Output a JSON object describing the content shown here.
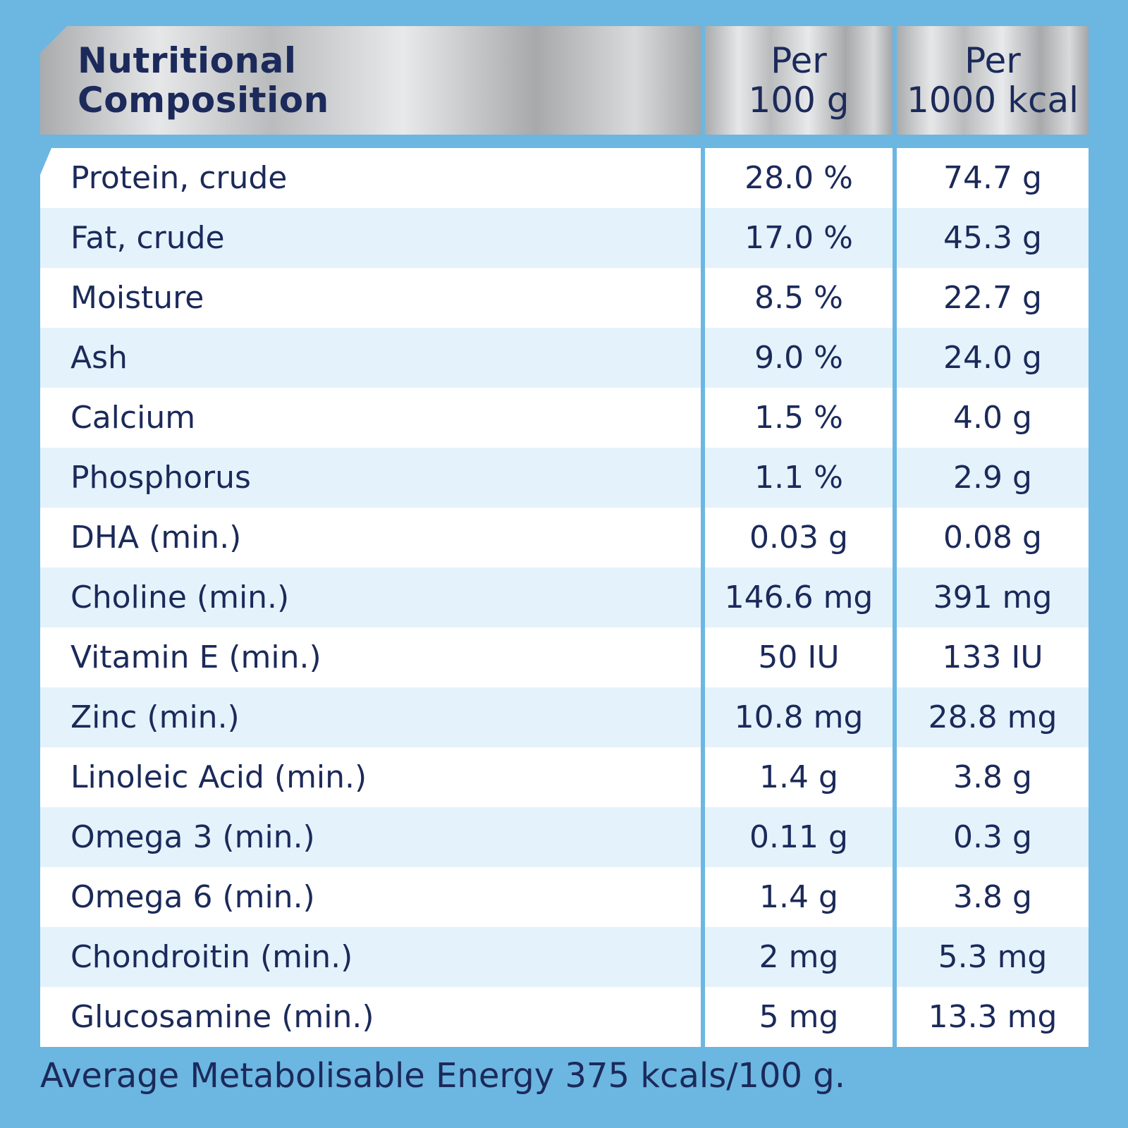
{
  "header": {
    "label_col": "Nutritional\nComposition",
    "col1": "Per\n100 g",
    "col2": "Per\n1000 kcal"
  },
  "rows": [
    {
      "name": "Protein, crude",
      "per100g": "28.0 %",
      "per1000kcal": "74.7 g"
    },
    {
      "name": "Fat, crude",
      "per100g": "17.0 %",
      "per1000kcal": "45.3 g"
    },
    {
      "name": "Moisture",
      "per100g": "8.5 %",
      "per1000kcal": "22.7 g"
    },
    {
      "name": "Ash",
      "per100g": "9.0 %",
      "per1000kcal": "24.0 g"
    },
    {
      "name": "Calcium",
      "per100g": "1.5 %",
      "per1000kcal": "4.0 g"
    },
    {
      "name": "Phosphorus",
      "per100g": "1.1 %",
      "per1000kcal": "2.9 g"
    },
    {
      "name": "DHA (min.)",
      "per100g": "0.03 g",
      "per1000kcal": "0.08 g"
    },
    {
      "name": "Choline (min.)",
      "per100g": "146.6 mg",
      "per1000kcal": "391 mg"
    },
    {
      "name": "Vitamin E (min.)",
      "per100g": "50 IU",
      "per1000kcal": "133 IU"
    },
    {
      "name": "Zinc (min.)",
      "per100g": "10.8 mg",
      "per1000kcal": "28.8 mg"
    },
    {
      "name": "Linoleic Acid (min.)",
      "per100g": "1.4 g",
      "per1000kcal": "3.8 g"
    },
    {
      "name": "Omega 3 (min.)",
      "per100g": "0.11 g",
      "per1000kcal": "0.3 g"
    },
    {
      "name": "Omega 6 (min.)",
      "per100g": "1.4 g",
      "per1000kcal": "3.8 g"
    },
    {
      "name": "Chondroitin (min.)",
      "per100g": "2 mg",
      "per1000kcal": "5.3 mg"
    },
    {
      "name": "Glucosamine (min.)",
      "per100g": "5 mg",
      "per1000kcal": "13.3 mg"
    }
  ],
  "footnote": "Average Metabolisable Energy 375 kcals/100 g.",
  "colors": {
    "frame": "#6cb6e2",
    "text": "#1b2a5a",
    "row_alt": "#e4f2fb",
    "row": "#ffffff"
  }
}
